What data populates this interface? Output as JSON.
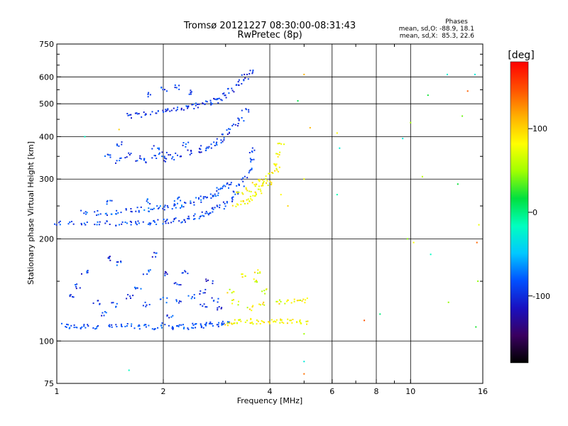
{
  "header": {
    "title": "Tromsø 20121227 08:30:00-08:31:43",
    "subtitle": "RwPretec (8p)",
    "phase_stats": {
      "title": "Phases",
      "o_line": "mean, sd,O: -88.9, 18.1",
      "x_line": "mean, sd,X:  85.3, 22.6"
    }
  },
  "colorbar": {
    "unit_label": "[deg]",
    "tick_labels": [
      "100",
      "0",
      "-100"
    ],
    "tick_values": [
      100,
      0,
      -100
    ],
    "range": [
      -180,
      180
    ],
    "palette": [
      "#000000",
      "#3a0060",
      "#1a10c0",
      "#0050ff",
      "#00c8ff",
      "#00ffc0",
      "#00e040",
      "#a0ff00",
      "#ffff00",
      "#ffb000",
      "#ff5000",
      "#ff0000"
    ]
  },
  "chart_data": {
    "type": "scatter",
    "xlabel": "Frequency [MHz]",
    "ylabel": "Stationary phase Virtual Height [km]",
    "x_scale": "log",
    "y_scale": "log",
    "xlim": [
      1,
      16
    ],
    "ylim": [
      75,
      750
    ],
    "grid": true,
    "x_ticks": [
      1,
      2,
      4,
      6,
      8,
      10,
      16
    ],
    "x_tick_labels": [
      "1",
      "2",
      "4",
      "6",
      "8",
      "10",
      "16"
    ],
    "x_minor_ticks": [
      3,
      5,
      7,
      9
    ],
    "y_ticks": [
      75,
      100,
      200,
      300,
      400,
      500,
      600,
      750
    ],
    "y_tick_labels": [
      "75",
      "100",
      "200",
      "300",
      "400",
      "500",
      "600",
      "750"
    ],
    "y_minor_ticks": [
      150,
      250,
      350,
      450,
      550,
      650,
      700
    ],
    "series": [
      {
        "role": "E-layer O trace",
        "phase_deg": -85,
        "phase_spread": 15,
        "points": [
          [
            1.05,
            111
          ],
          [
            1.1,
            110
          ],
          [
            1.15,
            110
          ],
          [
            1.2,
            111
          ],
          [
            1.3,
            110
          ],
          [
            1.4,
            111
          ],
          [
            1.5,
            110
          ],
          [
            1.6,
            111
          ],
          [
            1.7,
            110
          ],
          [
            1.8,
            111
          ],
          [
            1.9,
            110
          ],
          [
            2.0,
            111
          ],
          [
            2.1,
            110
          ],
          [
            2.2,
            111
          ],
          [
            2.3,
            110
          ],
          [
            2.4,
            111
          ],
          [
            2.5,
            111
          ],
          [
            2.6,
            111
          ],
          [
            2.7,
            112
          ],
          [
            2.8,
            112
          ],
          [
            2.9,
            112
          ],
          [
            3.0,
            113
          ]
        ]
      },
      {
        "role": "E-layer X trace",
        "phase_deg": 85,
        "phase_spread": 20,
        "points": [
          [
            3.05,
            113
          ],
          [
            3.2,
            114
          ],
          [
            3.3,
            114
          ],
          [
            3.5,
            115
          ],
          [
            3.6,
            114
          ],
          [
            3.8,
            114
          ],
          [
            4.0,
            114
          ],
          [
            4.2,
            114
          ],
          [
            4.4,
            114
          ],
          [
            4.6,
            114
          ],
          [
            4.8,
            114
          ],
          [
            5.0,
            114
          ]
        ]
      },
      {
        "role": "E-layer multipath O",
        "phase_deg": -95,
        "phase_spread": 25,
        "points": [
          [
            1.1,
            135
          ],
          [
            1.3,
            130
          ],
          [
            1.45,
            128
          ],
          [
            1.6,
            135
          ],
          [
            1.8,
            128
          ],
          [
            2.0,
            132
          ],
          [
            2.2,
            130
          ],
          [
            2.4,
            135
          ],
          [
            2.6,
            128
          ],
          [
            2.8,
            132
          ],
          [
            1.2,
            160
          ],
          [
            1.5,
            170
          ],
          [
            1.8,
            160
          ],
          [
            2.05,
            158
          ],
          [
            2.3,
            160
          ],
          [
            2.7,
            150
          ],
          [
            1.4,
            175
          ],
          [
            1.9,
            180
          ],
          [
            2.6,
            140
          ],
          [
            1.15,
            145
          ],
          [
            1.7,
            143
          ],
          [
            2.2,
            148
          ],
          [
            1.35,
            120
          ],
          [
            2.1,
            118
          ],
          [
            2.9,
            125
          ]
        ]
      },
      {
        "role": "E-layer multipath X",
        "phase_deg": 80,
        "phase_spread": 30,
        "points": [
          [
            3.2,
            130
          ],
          [
            3.5,
            125
          ],
          [
            3.8,
            128
          ],
          [
            4.2,
            130
          ],
          [
            4.5,
            131
          ],
          [
            4.8,
            132
          ],
          [
            5.0,
            132
          ],
          [
            3.4,
            155
          ],
          [
            3.7,
            160
          ],
          [
            3.6,
            150
          ],
          [
            3.1,
            140
          ],
          [
            3.9,
            140
          ]
        ]
      },
      {
        "role": "F-layer O trace",
        "phase_deg": -90,
        "phase_spread": 18,
        "points": [
          [
            1.0,
            222
          ],
          [
            1.1,
            222
          ],
          [
            1.2,
            221
          ],
          [
            1.3,
            221
          ],
          [
            1.4,
            222
          ],
          [
            1.5,
            222
          ],
          [
            1.6,
            223
          ],
          [
            1.7,
            224
          ],
          [
            1.8,
            224
          ],
          [
            1.9,
            224
          ],
          [
            2.0,
            225
          ],
          [
            2.1,
            226
          ],
          [
            2.2,
            227
          ],
          [
            2.3,
            228
          ],
          [
            2.4,
            230
          ],
          [
            2.5,
            233
          ],
          [
            2.6,
            236
          ],
          [
            2.7,
            239
          ],
          [
            2.8,
            243
          ],
          [
            2.9,
            248
          ],
          [
            3.0,
            254
          ],
          [
            3.1,
            262
          ],
          [
            3.2,
            272
          ],
          [
            3.3,
            285
          ],
          [
            3.4,
            300
          ],
          [
            3.5,
            318
          ],
          [
            3.55,
            340
          ],
          [
            3.6,
            365
          ]
        ]
      },
      {
        "role": "F-layer O second hop",
        "phase_deg": -85,
        "phase_spread": 20,
        "points": [
          [
            1.2,
            240
          ],
          [
            1.3,
            238
          ],
          [
            1.4,
            238
          ],
          [
            1.5,
            240
          ],
          [
            1.6,
            242
          ],
          [
            1.7,
            244
          ],
          [
            1.8,
            245
          ],
          [
            1.9,
            246
          ],
          [
            2.0,
            247
          ],
          [
            2.1,
            248
          ],
          [
            2.2,
            250
          ],
          [
            2.3,
            253
          ],
          [
            2.4,
            256
          ],
          [
            2.5,
            260
          ],
          [
            2.6,
            264
          ],
          [
            2.7,
            268
          ],
          [
            2.8,
            272
          ],
          [
            2.9,
            278
          ],
          [
            3.0,
            285
          ],
          [
            3.1,
            292
          ],
          [
            1.4,
            255
          ],
          [
            1.8,
            258
          ],
          [
            2.2,
            262
          ]
        ]
      },
      {
        "role": "F-layer X trace",
        "phase_deg": 85,
        "phase_spread": 20,
        "points": [
          [
            3.2,
            252
          ],
          [
            3.3,
            255
          ],
          [
            3.4,
            258
          ],
          [
            3.5,
            262
          ],
          [
            3.6,
            268
          ],
          [
            3.7,
            275
          ],
          [
            3.8,
            283
          ],
          [
            3.9,
            295
          ],
          [
            4.0,
            310
          ],
          [
            4.1,
            330
          ],
          [
            4.2,
            355
          ],
          [
            4.3,
            385
          ],
          [
            3.5,
            280
          ],
          [
            3.6,
            290
          ],
          [
            3.3,
            270
          ],
          [
            4.0,
            290
          ],
          [
            3.8,
            300
          ],
          [
            4.2,
            320
          ]
        ]
      },
      {
        "role": "2F O echoes",
        "phase_deg": -95,
        "phase_spread": 22,
        "points": [
          [
            1.4,
            350
          ],
          [
            1.5,
            340
          ],
          [
            1.6,
            352
          ],
          [
            1.7,
            345
          ],
          [
            1.8,
            340
          ],
          [
            1.9,
            350
          ],
          [
            2.0,
            355
          ],
          [
            2.1,
            348
          ],
          [
            2.2,
            352
          ],
          [
            2.4,
            360
          ],
          [
            2.5,
            365
          ],
          [
            2.6,
            370
          ],
          [
            2.7,
            375
          ],
          [
            2.8,
            380
          ],
          [
            2.9,
            390
          ],
          [
            3.0,
            400
          ],
          [
            3.1,
            415
          ],
          [
            3.2,
            430
          ],
          [
            3.3,
            450
          ],
          [
            3.4,
            480
          ],
          [
            1.5,
            380
          ],
          [
            1.9,
            370
          ],
          [
            2.3,
            380
          ],
          [
            2.0,
            340
          ]
        ]
      },
      {
        "role": "3F O echoes",
        "phase_deg": -95,
        "phase_spread": 20,
        "points": [
          [
            1.6,
            460
          ],
          [
            1.7,
            462
          ],
          [
            1.8,
            470
          ],
          [
            1.9,
            470
          ],
          [
            2.0,
            475
          ],
          [
            2.1,
            478
          ],
          [
            2.2,
            480
          ],
          [
            2.3,
            485
          ],
          [
            2.4,
            490
          ],
          [
            2.5,
            495
          ],
          [
            2.6,
            500
          ],
          [
            2.7,
            505
          ],
          [
            2.8,
            510
          ],
          [
            2.9,
            520
          ],
          [
            3.0,
            530
          ],
          [
            3.1,
            545
          ],
          [
            3.2,
            560
          ],
          [
            3.3,
            580
          ],
          [
            3.4,
            600
          ],
          [
            3.5,
            620
          ],
          [
            2.0,
            550
          ],
          [
            2.2,
            560
          ],
          [
            1.8,
            530
          ],
          [
            2.4,
            540
          ]
        ]
      },
      {
        "role": "scattered noise",
        "phase_deg": 60,
        "phase_spread": 90,
        "points": [
          [
            5.0,
            610
          ],
          [
            5.2,
            425
          ],
          [
            5.0,
            300
          ],
          [
            6.2,
            410
          ],
          [
            6.3,
            370
          ],
          [
            6.2,
            270
          ],
          [
            7.4,
            115
          ],
          [
            8.2,
            120
          ],
          [
            9.8,
            200
          ],
          [
            10.8,
            305
          ],
          [
            11.2,
            530
          ],
          [
            11.4,
            180
          ],
          [
            12.7,
            610
          ],
          [
            12.8,
            130
          ],
          [
            13.6,
            290
          ],
          [
            14.0,
            460
          ],
          [
            14.5,
            545
          ],
          [
            15.2,
            610
          ],
          [
            15.6,
            220
          ],
          [
            15.5,
            150
          ],
          [
            15.4,
            195
          ],
          [
            15.3,
            110
          ],
          [
            5.0,
            80
          ],
          [
            5.0,
            87
          ],
          [
            5.0,
            105
          ],
          [
            4.8,
            510
          ],
          [
            10.0,
            440
          ],
          [
            10.2,
            195
          ],
          [
            1.6,
            82
          ],
          [
            1.2,
            400
          ],
          [
            1.5,
            420
          ],
          [
            9.5,
            395
          ],
          [
            4.3,
            270
          ],
          [
            4.5,
            250
          ]
        ]
      }
    ]
  }
}
